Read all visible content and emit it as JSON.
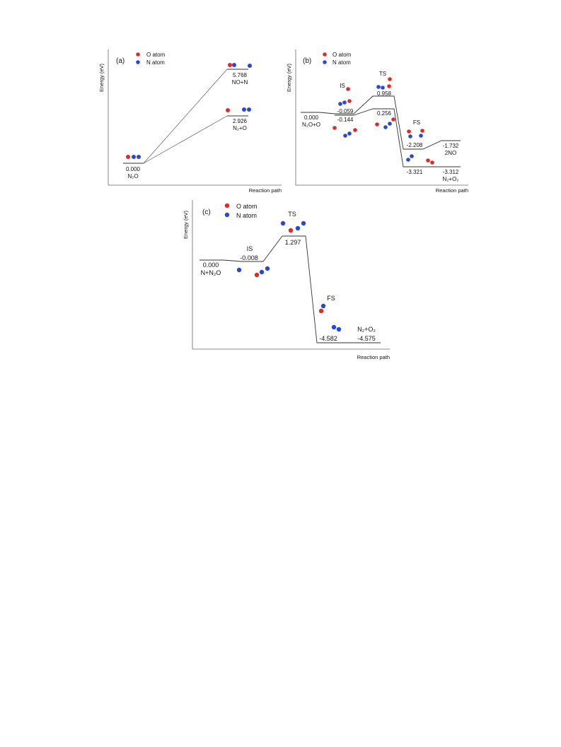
{
  "legend": {
    "o_atom": "O atom",
    "n_atom": "N atom"
  },
  "colors": {
    "o_atom": "#e02a2a",
    "n_atom": "#2a46d6",
    "axis": "#666666",
    "line": "#333333"
  },
  "chart_data": [
    {
      "type": "line",
      "panel": "(a)",
      "ylabel": "Energy (eV)",
      "xlabel": "Reaction path",
      "levels": [
        {
          "id": "n2o",
          "energy": "0.000",
          "species": "N₂O"
        },
        {
          "id": "no_n",
          "energy": "5.768",
          "species": "NO+N"
        },
        {
          "id": "n2_o",
          "energy": "2.926",
          "species": "N₂+O"
        }
      ],
      "paths": [
        [
          "n2o",
          "no_n"
        ],
        [
          "n2o",
          "n2_o"
        ]
      ]
    },
    {
      "type": "line",
      "panel": "(b)",
      "ylabel": "Energy (eV)",
      "xlabel": "Reaction path",
      "levels": [
        {
          "id": "start",
          "energy": "0.000",
          "species": "N₂O+O"
        },
        {
          "id": "is1",
          "energy": "-0.059",
          "tag": "IS"
        },
        {
          "id": "is2",
          "energy": "-0.144"
        },
        {
          "id": "ts1",
          "energy": "0.958",
          "tag": "TS"
        },
        {
          "id": "ts2",
          "energy": "0.256"
        },
        {
          "id": "fs1",
          "energy": "-2.208",
          "tag": "FS"
        },
        {
          "id": "fs2",
          "energy": "-3.321"
        },
        {
          "id": "p1",
          "energy": "-1.732",
          "species": "2NO"
        },
        {
          "id": "p2",
          "energy": "-3.312",
          "species": "N₂+O₂"
        }
      ],
      "paths": [
        [
          "start",
          "is1",
          "ts1",
          "fs1",
          "p1"
        ],
        [
          "start",
          "is2",
          "ts2",
          "fs2",
          "p2"
        ]
      ]
    },
    {
      "type": "line",
      "panel": "(c)",
      "ylabel": "Energy (eV)",
      "xlabel": "Reaction path",
      "levels": [
        {
          "id": "start",
          "energy": "0.000",
          "species": "N+N₂O"
        },
        {
          "id": "is",
          "energy": "-0.008",
          "tag": "IS"
        },
        {
          "id": "ts",
          "energy": "1.297",
          "tag": "TS"
        },
        {
          "id": "fs",
          "energy": "-4.582",
          "tag": "FS"
        },
        {
          "id": "p",
          "energy": "-4.575",
          "species": "N₂+O₂"
        }
      ],
      "paths": [
        [
          "start",
          "is",
          "ts",
          "fs",
          "p"
        ]
      ]
    }
  ]
}
